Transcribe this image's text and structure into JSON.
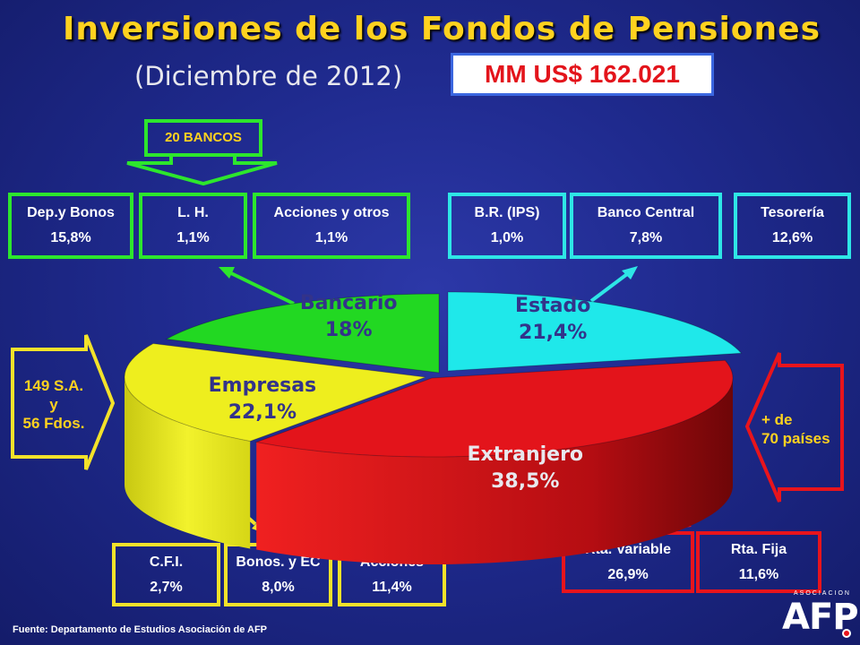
{
  "title": "Inversiones de los Fondos de Pensiones",
  "subtitle": "(Diciembre de 2012)",
  "total": "MM US$ 162.021",
  "bancos_label": "20 BANCOS",
  "left_note": [
    "149 S.A.",
    "y",
    "56 Fdos."
  ],
  "right_note": [
    "+ de",
    "70 países"
  ],
  "footer": "Fuente: Departamento  de Estudios Asociación de AFP",
  "logo": {
    "small": "ASOCIACION",
    "big": "AFP"
  },
  "boxes": {
    "dep_bonos": {
      "label": "Dep.y Bonos",
      "value": "15,8%"
    },
    "lh": {
      "label": "L. H.",
      "value": "1,1%"
    },
    "acciones_otros": {
      "label": "Acciones y otros",
      "value": "1,1%"
    },
    "br_ips": {
      "label": "B.R. (IPS)",
      "value": "1,0%"
    },
    "banco_central": {
      "label": "Banco Central",
      "value": "7,8%"
    },
    "tesoreria": {
      "label": "Tesorería",
      "value": "12,6%"
    },
    "cfi": {
      "label": "C.F.I.",
      "value": "2,7%"
    },
    "bonos_ec": {
      "label": "Bonos. y EC",
      "value": "8,0%"
    },
    "acciones": {
      "label": "Acciones",
      "value": "11,4%"
    },
    "rta_variable": {
      "label": "Rta. Variable",
      "value": "26,9%"
    },
    "rta_fija": {
      "label": "Rta. Fija",
      "value": "11,6%"
    }
  },
  "chart_data": {
    "type": "pie",
    "title": "Inversiones de los Fondos de Pensiones",
    "slices": [
      {
        "name": "Estado",
        "value": 21.4,
        "value_label": "21,4%",
        "color": "#1fe8ea"
      },
      {
        "name": "Extranjero",
        "value": 38.5,
        "value_label": "38,5%",
        "color": "#e3141b"
      },
      {
        "name": "Empresas",
        "value": 22.1,
        "value_label": "22,1%",
        "color": "#eeee1e"
      },
      {
        "name": "Bancario",
        "value": 18,
        "value_label": "18%",
        "color": "#22d822"
      }
    ]
  },
  "colors": {
    "title": "#ffd21f",
    "green": "#2de62d",
    "cyan": "#2ee6e6",
    "yellow": "#f3e22a",
    "red": "#e8141c"
  }
}
